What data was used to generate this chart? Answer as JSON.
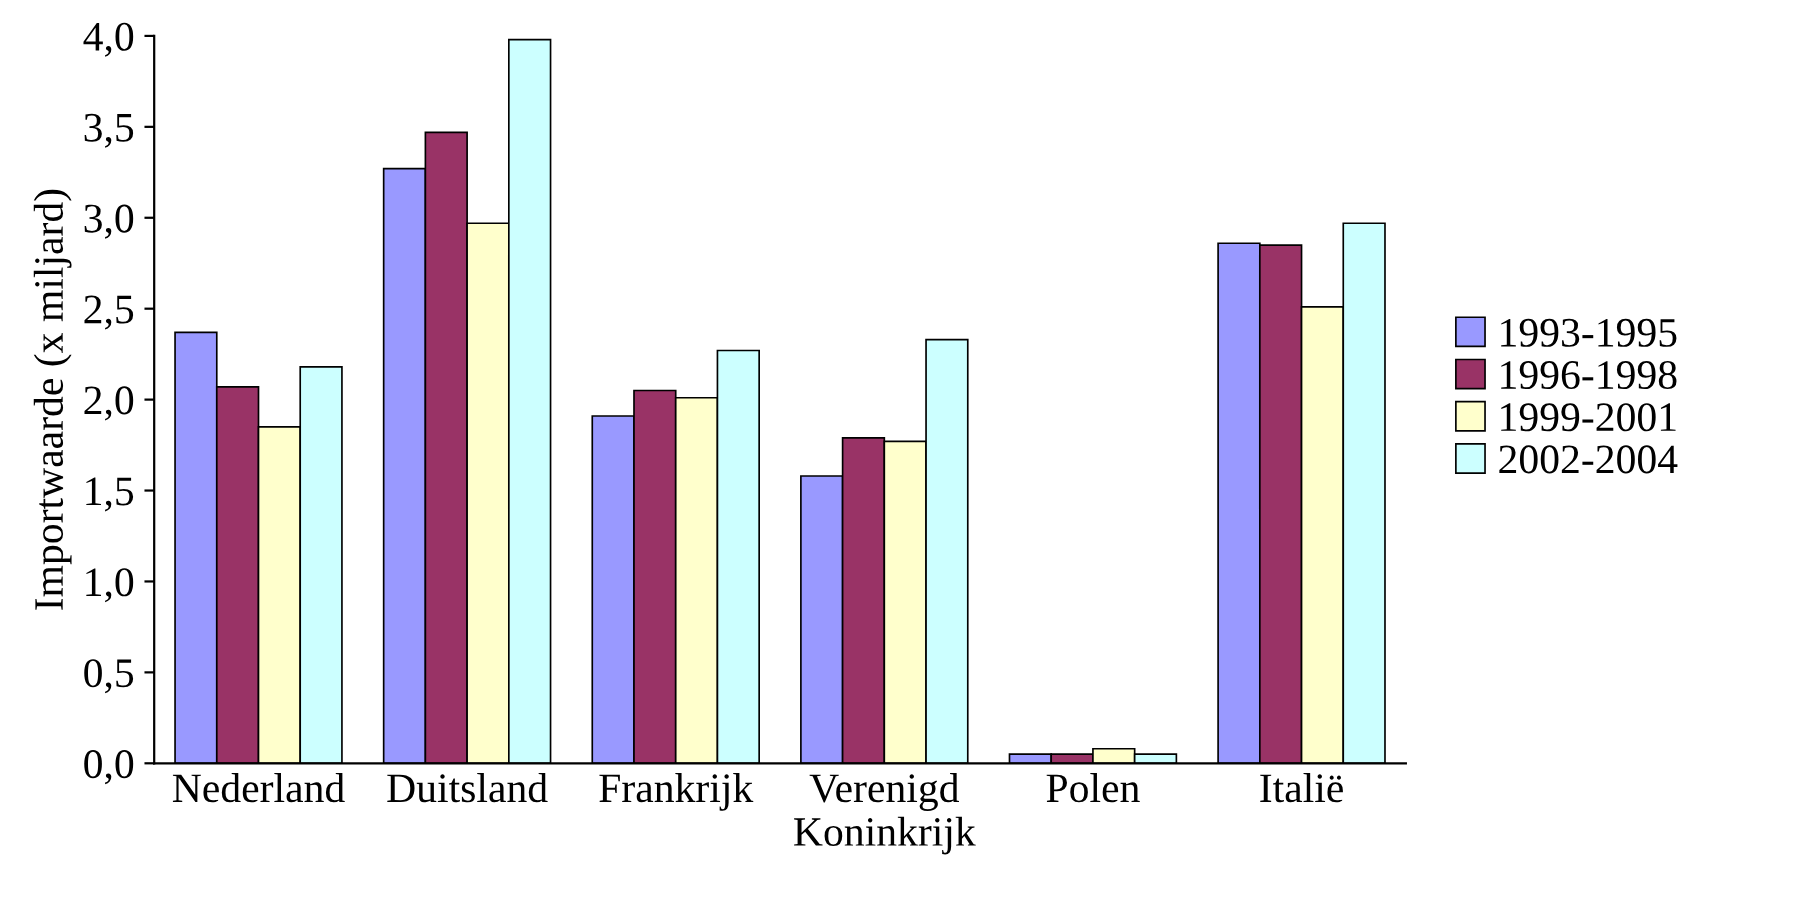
{
  "chart_data": {
    "type": "bar",
    "ylabel": "Importwaarde (x miljard)",
    "categories": [
      "Nederland",
      "Duitsland",
      "Frankrijk",
      "Verenigd\nKoninkrijk",
      "Polen",
      "Italië"
    ],
    "series": [
      {
        "name": "1993-1995",
        "color": "#9999ff",
        "values": [
          2.37,
          3.27,
          1.91,
          1.58,
          0.05,
          2.86
        ]
      },
      {
        "name": "1996-1998",
        "color": "#993366",
        "values": [
          2.07,
          3.47,
          2.05,
          1.79,
          0.05,
          2.85
        ]
      },
      {
        "name": "1999-2001",
        "color": "#ffffcc",
        "values": [
          1.85,
          2.97,
          2.01,
          1.77,
          0.08,
          2.51
        ]
      },
      {
        "name": "2002-2004",
        "color": "#ccffff",
        "values": [
          2.18,
          3.98,
          2.27,
          2.33,
          0.05,
          2.97
        ]
      }
    ],
    "ylim": [
      0,
      4
    ],
    "yticks": [
      {
        "value": 0,
        "label": "0,0"
      },
      {
        "value": 0.5,
        "label": "0,5"
      },
      {
        "value": 1,
        "label": "1,0"
      },
      {
        "value": 1.5,
        "label": "1,5"
      },
      {
        "value": 2,
        "label": "2,0"
      },
      {
        "value": 2.5,
        "label": "2,5"
      },
      {
        "value": 3,
        "label": "3,0"
      },
      {
        "value": 3.5,
        "label": "3,5"
      },
      {
        "value": 4,
        "label": "4,0"
      }
    ],
    "grid": false,
    "legend": "right"
  }
}
